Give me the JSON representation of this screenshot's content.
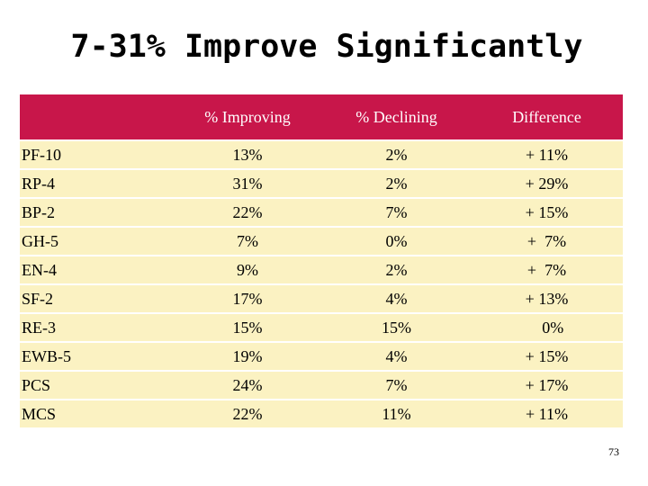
{
  "slide": {
    "title": "7-31% Improve Significantly",
    "page_number": "73"
  },
  "table": {
    "headers": [
      "",
      "% Improving",
      "% Declining",
      "Difference"
    ],
    "rows": [
      {
        "label": "PF-10",
        "improving": "13%",
        "declining": "2%",
        "difference": "+ 11%"
      },
      {
        "label": "RP-4",
        "improving": "31%",
        "declining": "2%",
        "difference": "+ 29%"
      },
      {
        "label": "BP-2",
        "improving": "22%",
        "declining": "7%",
        "difference": "+ 15%"
      },
      {
        "label": "GH-5",
        "improving": "7%",
        "declining": "0%",
        "difference": "+  7%"
      },
      {
        "label": "EN-4",
        "improving": "9%",
        "declining": "2%",
        "difference": "+  7%"
      },
      {
        "label": "SF-2",
        "improving": "17%",
        "declining": "4%",
        "difference": "+ 13%"
      },
      {
        "label": "RE-3",
        "improving": "15%",
        "declining": "15%",
        "difference": "   0%"
      },
      {
        "label": "EWB-5",
        "improving": "19%",
        "declining": "4%",
        "difference": "+ 15%"
      },
      {
        "label": "PCS",
        "improving": "24%",
        "declining": "7%",
        "difference": "+ 17%"
      },
      {
        "label": "MCS",
        "improving": "22%",
        "declining": "11%",
        "difference": "+ 11%"
      }
    ]
  },
  "colors": {
    "header_bg": "#c8164a",
    "header_text": "#ffffff",
    "row_bg": "#fbf2c2"
  }
}
